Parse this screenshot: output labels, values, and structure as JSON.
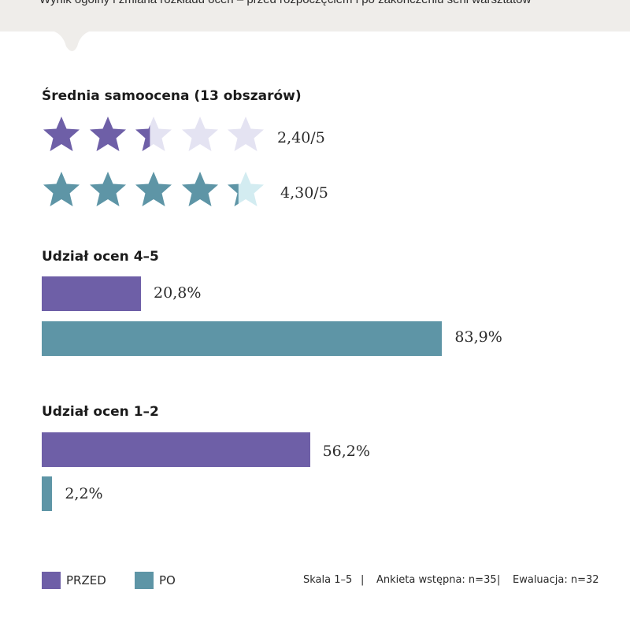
{
  "header": {
    "subtitle": "Wynik ogólny i zmiana rozkładu ocen – przed rozpoczęciem i po zakończeniu serii warsztatów"
  },
  "colors": {
    "przed": "#6e5fa7",
    "przed_light": "#e4e3f2",
    "po": "#5e95a6",
    "po_light": "#d3ecf1"
  },
  "chart_data": [
    {
      "type": "rating",
      "title": "Średnia samoocena (13 obszarów)",
      "max": 5,
      "series": [
        {
          "value": 2.4,
          "label": "2,40/5"
        },
        {
          "value": 4.3,
          "label": "4,30/5"
        }
      ]
    },
    {
      "type": "bar",
      "orientation": "horizontal",
      "title": "Udział ocen 4–5",
      "unit": "%",
      "xlim": [
        0,
        100
      ],
      "series": [
        {
          "value": 20.8,
          "label": "20,8%"
        },
        {
          "value": 83.9,
          "label": "83,9%"
        }
      ]
    },
    {
      "type": "bar",
      "orientation": "horizontal",
      "title": "Udział ocen 1–2",
      "unit": "%",
      "xlim": [
        0,
        100
      ],
      "series": [
        {
          "value": 56.2,
          "label": "56,2%"
        },
        {
          "value": 2.2,
          "label": "2,2%"
        }
      ]
    }
  ],
  "legend": {
    "items": [
      {
        "label": "PRZED"
      },
      {
        "label": "PO"
      }
    ],
    "placement": "bottom-left"
  },
  "footnotes": [
    "Skala 1–5",
    "|",
    "Ankieta wstępna: n=35",
    "|",
    "Ewaluacja: n=32"
  ]
}
